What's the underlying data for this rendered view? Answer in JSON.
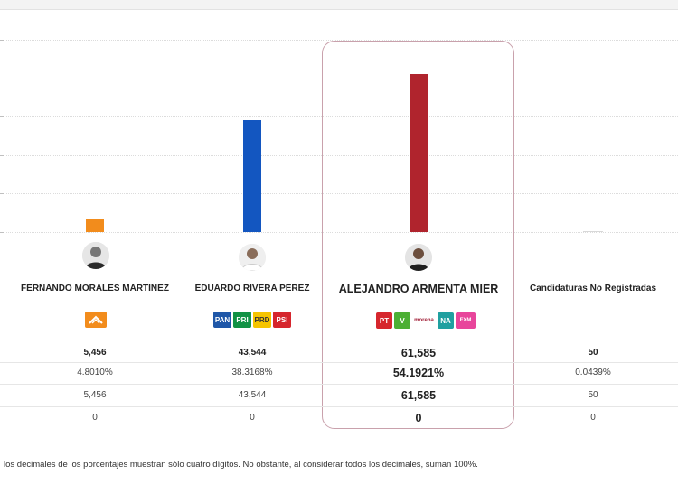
{
  "chart_data": {
    "type": "bar",
    "categories": [
      "FERNANDO MORALES MARTINEZ",
      "EDUARDO RIVERA PEREZ",
      "ALEJANDRO ARMENTA MIER",
      "Candidaturas No Registradas"
    ],
    "values": [
      5456,
      43544,
      61585,
      50
    ],
    "colors": [
      "#f28c1c",
      "#1356c0",
      "#b0242d",
      "#d8d8d8"
    ],
    "highlighted_category": "ALEJANDRO ARMENTA MIER",
    "grid": true,
    "ylim": [
      0,
      75000
    ]
  },
  "candidates": [
    {
      "name": "FERNANDO MORALES MARTINEZ",
      "avatar_icon": "person-avatar-icon",
      "logos": [
        {
          "icon": "movimiento-ciudadano-logo-icon",
          "text": "",
          "color": "#f28c1c"
        }
      ],
      "votes": "5,456",
      "percent": "4.8010%",
      "row3": "5,456",
      "row4": "0"
    },
    {
      "name": "EDUARDO RIVERA PEREZ",
      "avatar_icon": "person-avatar-icon",
      "logos": [
        {
          "icon": "pan-logo-icon",
          "text": "PAN",
          "color": "#1f57a8"
        },
        {
          "icon": "pri-logo-icon",
          "text": "PRI",
          "color": "#129245"
        },
        {
          "icon": "prd-logo-icon",
          "text": "PRD",
          "color": "#f5c400"
        },
        {
          "icon": "psi-logo-icon",
          "text": "PSI",
          "color": "#d6262d"
        }
      ],
      "votes": "43,544",
      "percent": "38.3168%",
      "row3": "43,544",
      "row4": "0"
    },
    {
      "name": "ALEJANDRO ARMENTA MIER",
      "avatar_icon": "person-avatar-icon",
      "logos": [
        {
          "icon": "pt-logo-icon",
          "text": "PT",
          "color": "#d6262d"
        },
        {
          "icon": "pvem-logo-icon",
          "text": "V",
          "color": "#4caf34"
        },
        {
          "icon": "morena-logo-icon",
          "text": "morena",
          "color": "#a3223a"
        },
        {
          "icon": "nueva-alianza-logo-icon",
          "text": "NA",
          "color": "#20a0a0"
        },
        {
          "icon": "fuerza-por-mexico-logo-icon",
          "text": "FXM",
          "color": "#e8459b"
        }
      ],
      "votes": "61,585",
      "percent": "54.1921%",
      "row3": "61,585",
      "row4": "0"
    },
    {
      "name": "Candidaturas No Registradas",
      "avatar_icon": "",
      "logos": [],
      "votes": "50",
      "percent": "0.0439%",
      "row3": "50",
      "row4": "0"
    }
  ],
  "footnote": "los decimales de los porcentajes muestran sólo cuatro dígitos. No obstante, al considerar todos los decimales, suman 100%."
}
